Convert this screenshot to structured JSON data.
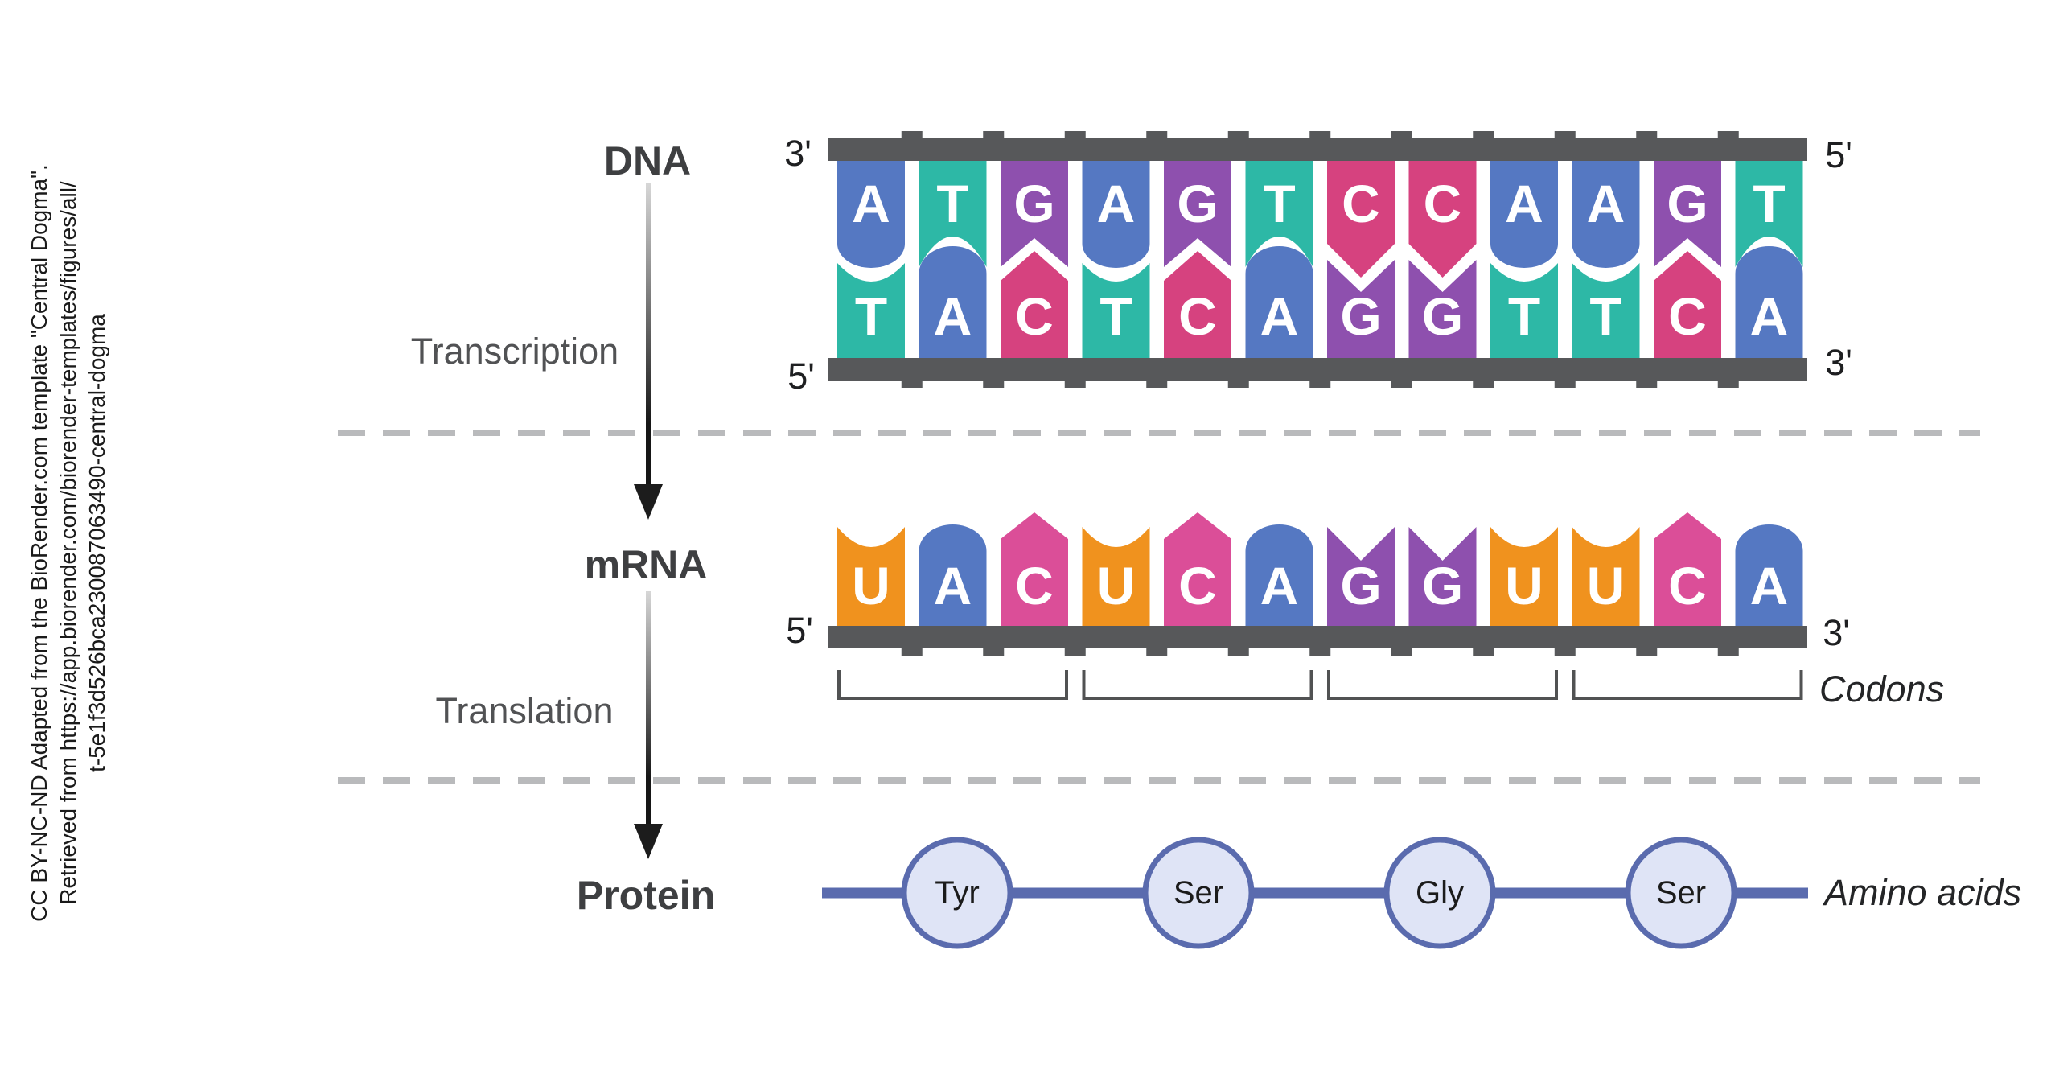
{
  "attribution": {
    "line1": "CC BY-NC-ND Adapted from the BioRender.com template \"Central Dogma\".",
    "line2": "Retrieved from https://app.biorender.com/biorender-templates/figures/all/",
    "line3": "t-5e1f3d526bca230087063490-central-dogma"
  },
  "stages": {
    "dna_label": "DNA",
    "transcription_label": "Transcription",
    "mrna_label": "mRNA",
    "translation_label": "Translation",
    "protein_label": "Protein"
  },
  "dna": {
    "top_strand": [
      "A",
      "T",
      "G",
      "A",
      "G",
      "T",
      "C",
      "C",
      "A",
      "A",
      "G",
      "T"
    ],
    "bottom_strand": [
      "T",
      "A",
      "C",
      "T",
      "C",
      "A",
      "G",
      "G",
      "T",
      "T",
      "C",
      "A"
    ],
    "top_left_end": "3'",
    "top_right_end": "5'",
    "bottom_left_end": "5'",
    "bottom_right_end": "3'"
  },
  "mrna": {
    "sequence": [
      "U",
      "A",
      "C",
      "U",
      "C",
      "A",
      "G",
      "G",
      "U",
      "U",
      "C",
      "A"
    ],
    "left_end": "5'",
    "right_end": "3'",
    "codon_size": 3,
    "codons_label": "Codons"
  },
  "protein": {
    "amino_acids": [
      "Tyr",
      "Ser",
      "Gly",
      "Ser"
    ],
    "chain_label": "Amino acids"
  },
  "colors": {
    "A": "#5578C2",
    "T": "#2DB8A6",
    "G": "#8E50AE",
    "C": "#D6427F",
    "C_rna": "#DB4E98",
    "U": "#F0921E",
    "backbone": "#57585A",
    "dashed_line": "#B9BABC",
    "bracket": "#515253",
    "arrow_dark": "#1c1c1c",
    "amino_circle_fill": "#DFE4F6",
    "amino_chain": "#5A6BAE",
    "letter": "#FFFFFF"
  }
}
